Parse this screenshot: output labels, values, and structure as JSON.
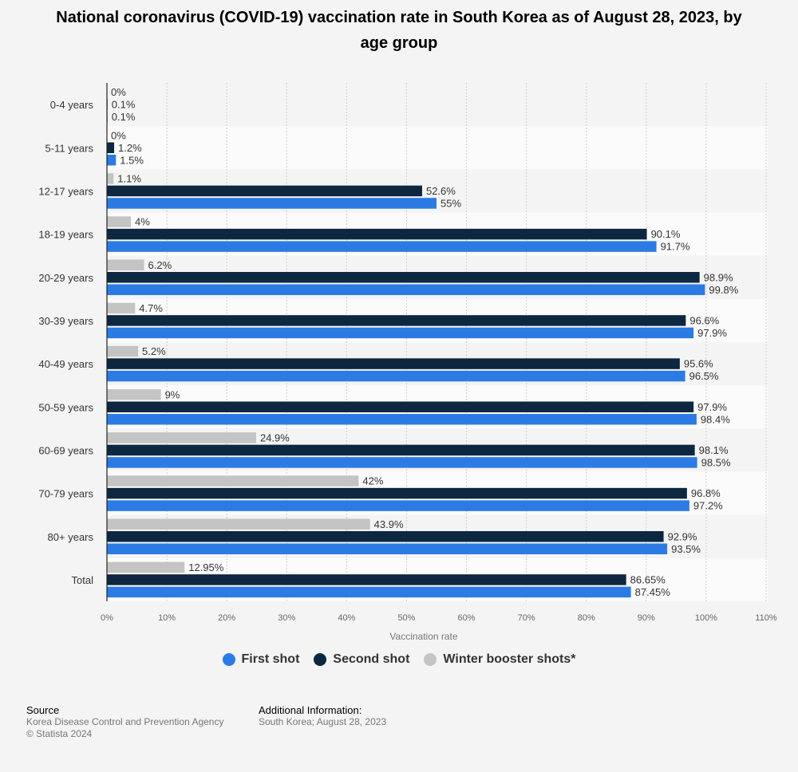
{
  "title": "National coronavirus (COVID-19) vaccination rate in South Korea as of August 28, 2023, by age group",
  "colors": {
    "first": "#2c7be5",
    "second": "#0d2740",
    "booster": "#c4c4c4",
    "grid": "#cfcfcf",
    "band": "#fbfbfb"
  },
  "chart_data": {
    "type": "bar",
    "orientation": "horizontal",
    "categories": [
      "0-4 years",
      "5-11 years",
      "12-17 years",
      "18-19 years",
      "20-29 years",
      "30-39 years",
      "40-49 years",
      "50-59 years",
      "60-69 years",
      "70-79 years",
      "80+ years",
      "Total"
    ],
    "series": [
      {
        "name": "Winter booster shots*",
        "key": "booster",
        "values": [
          0,
          0,
          1.1,
          4,
          6.2,
          4.7,
          5.2,
          9,
          24.9,
          42,
          43.9,
          12.95
        ],
        "labels": [
          "0%",
          "0%",
          "1.1%",
          "4%",
          "6.2%",
          "4.7%",
          "5.2%",
          "9%",
          "24.9%",
          "42%",
          "43.9%",
          "12.95%"
        ]
      },
      {
        "name": "Second shot",
        "key": "second",
        "values": [
          0.1,
          1.2,
          52.6,
          90.1,
          98.9,
          96.6,
          95.6,
          97.9,
          98.1,
          96.8,
          92.9,
          86.65
        ],
        "labels": [
          "0.1%",
          "1.2%",
          "52.6%",
          "90.1%",
          "98.9%",
          "96.6%",
          "95.6%",
          "97.9%",
          "98.1%",
          "96.8%",
          "92.9%",
          "86.65%"
        ]
      },
      {
        "name": "First shot",
        "key": "first",
        "values": [
          0.1,
          1.5,
          55,
          91.7,
          99.8,
          97.9,
          96.5,
          98.4,
          98.5,
          97.2,
          93.5,
          87.45
        ],
        "labels": [
          "0.1%",
          "1.5%",
          "55%",
          "91.7%",
          "99.8%",
          "97.9%",
          "96.5%",
          "98.4%",
          "98.5%",
          "97.2%",
          "93.5%",
          "87.45%"
        ]
      }
    ],
    "xlim": [
      0,
      110
    ],
    "xticks": [
      0,
      10,
      20,
      30,
      40,
      50,
      60,
      70,
      80,
      90,
      100,
      110
    ],
    "xtick_labels": [
      "0%",
      "10%",
      "20%",
      "30%",
      "40%",
      "50%",
      "60%",
      "70%",
      "80%",
      "90%",
      "100%",
      "110%"
    ],
    "xlabel": "Vaccination rate",
    "ylabel": "",
    "grid": true,
    "legend_position": "bottom-center"
  },
  "legend": [
    {
      "label": "First shot",
      "key": "first"
    },
    {
      "label": "Second shot",
      "key": "second"
    },
    {
      "label": "Winter booster shots*",
      "key": "booster"
    }
  ],
  "footer": {
    "source_heading": "Source",
    "source_line1": "Korea Disease Control and Prevention Agency",
    "source_line2": "© Statista 2024",
    "info_heading": "Additional Information:",
    "info_line1": "South Korea; August 28, 2023"
  }
}
